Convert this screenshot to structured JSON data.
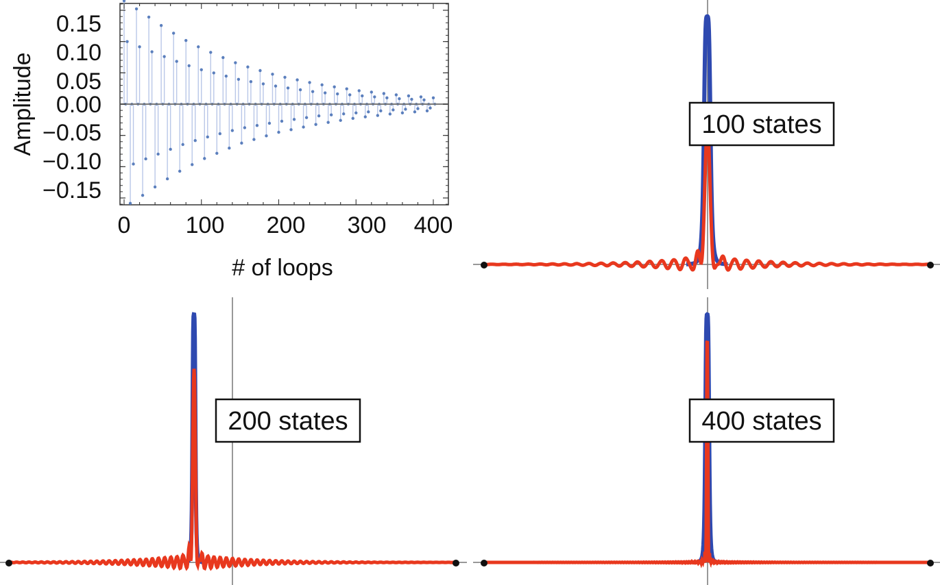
{
  "colors": {
    "stem_points": "#5b7fbd",
    "stem_lines": "#b9c7e8",
    "exact_curve": "#2e49b0",
    "approx_curve": "#e8381e",
    "axis": "#777777"
  },
  "chart_data": [
    {
      "type": "scatter",
      "style": "stem",
      "xlabel": "# of loops",
      "ylabel": "Amplitude",
      "xlim": [
        0,
        400
      ],
      "ylim": [
        -0.17,
        0.17
      ],
      "x_ticks": [
        "0",
        "100",
        "200",
        "300",
        "400"
      ],
      "y_ticks": [
        "0.15",
        "0.10",
        "0.05",
        "0.00",
        "−0.05",
        "−0.10",
        "−0.15"
      ],
      "grid": false,
      "series": [
        {
          "x": [
            0,
            25,
            50,
            75,
            100,
            150,
            200,
            250,
            300,
            350,
            400
          ],
          "envelope_outer": [
            0.165,
            0.145,
            0.124,
            0.105,
            0.089,
            0.063,
            0.045,
            0.032,
            0.022,
            0.015,
            0.01
          ],
          "envelope_inner": [
            0.102,
            0.089,
            0.077,
            0.065,
            0.055,
            0.039,
            0.028,
            0.019,
            0.014,
            0.009,
            0.006
          ]
        }
      ]
    },
    {
      "type": "line",
      "label": "100 states",
      "series": [
        {
          "peak_height": 1.0,
          "center": 0.5,
          "width": 0.0078
        },
        {
          "peak_height": 0.55,
          "center": 0.5,
          "ripple_amplitude": 0.1,
          "ripple_period": 0.0272
        }
      ]
    },
    {
      "type": "line",
      "label": "200 states",
      "series": [
        {
          "peak_height": 1.0,
          "center": 0.414,
          "width": 0.0035
        },
        {
          "peak_height": 0.78,
          "center": 0.414,
          "ripple_amplitude": 0.09,
          "ripple_period": 0.0138
        }
      ]
    },
    {
      "type": "line",
      "label": "400 states",
      "series": [
        {
          "peak_height": 1.0,
          "center": 0.5,
          "width": 0.0045
        },
        {
          "peak_height": 0.95,
          "center": 0.5,
          "ripple_amplitude": 0.01,
          "ripple_period": 0.006
        }
      ]
    }
  ]
}
